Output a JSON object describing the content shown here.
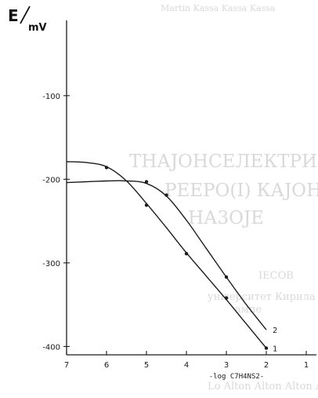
{
  "bleed_text": {
    "top": "Martin Kassa Kassa Kassa",
    "line1": "ТНАЈОНСЕЛЕКТРИВНА",
    "line2": "РЕЕРО(І) КАЈОНОТ",
    "line3": "НА3ОЈЕ",
    "line4": "ІЕСОВ",
    "line5": "університет Кирила і Методија",
    "line6": "ампе",
    "line7": "Lo Alton Alton Alton Aalton Aalton"
  },
  "chart_data": {
    "type": "line",
    "ylabel": "E/mV",
    "xlabel": "-log C7H4NS2-",
    "xlim": [
      7,
      1
    ],
    "ylim": [
      -410,
      -10
    ],
    "x_ticks": [
      "7",
      "6",
      "5",
      "4",
      "3",
      "2",
      "1"
    ],
    "y_ticks": [
      "-100",
      "-200",
      "-300",
      "-400"
    ],
    "series": [
      {
        "name": "1",
        "points": [
          [
            6,
            -186
          ],
          [
            5,
            -231
          ],
          [
            4,
            -289
          ],
          [
            3,
            -342
          ],
          [
            2,
            -402
          ]
        ],
        "curve": [
          [
            7,
            -179
          ],
          [
            6.5,
            -180
          ],
          [
            6,
            -185
          ],
          [
            5.5,
            -202
          ],
          [
            5,
            -229
          ],
          [
            4.5,
            -258
          ],
          [
            4,
            -288
          ],
          [
            3.5,
            -316
          ],
          [
            3,
            -344
          ],
          [
            2.5,
            -373
          ],
          [
            2,
            -402
          ]
        ]
      },
      {
        "name": "2",
        "points": [
          [
            5,
            -203
          ],
          [
            4.5,
            -219
          ],
          [
            3,
            -317
          ]
        ],
        "curve": [
          [
            7,
            -204
          ],
          [
            6.5,
            -203
          ],
          [
            6,
            -202
          ],
          [
            5.5,
            -202
          ],
          [
            5,
            -205
          ],
          [
            4.5,
            -220
          ],
          [
            4,
            -249
          ],
          [
            3.5,
            -283
          ],
          [
            3,
            -317
          ],
          [
            2.5,
            -350
          ],
          [
            2,
            -380
          ]
        ]
      }
    ]
  }
}
